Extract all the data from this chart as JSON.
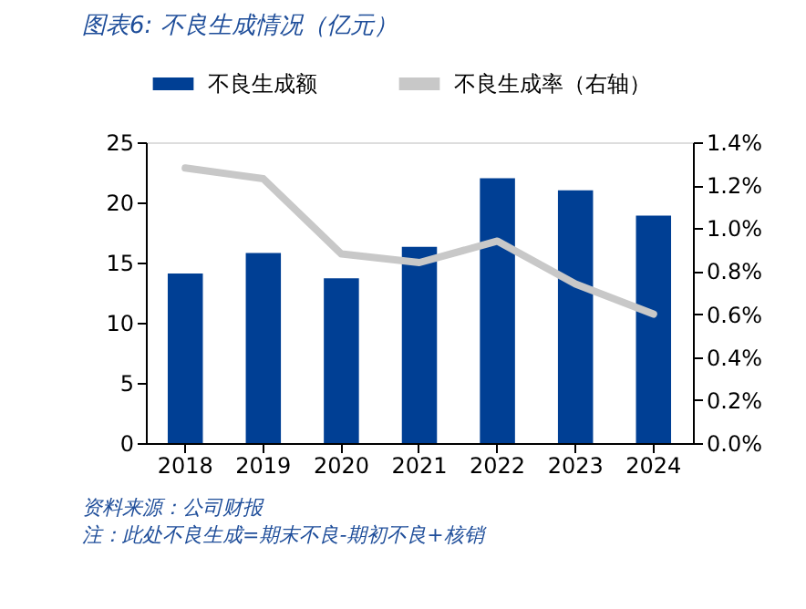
{
  "chart_data": {
    "type": "bar",
    "title": "图表6:  不良生成情况（亿元）",
    "categories": [
      "2018",
      "2019",
      "2020",
      "2021",
      "2022",
      "2023",
      "2024"
    ],
    "series": [
      {
        "name": "不良生成额",
        "color": "#003f94",
        "values": [
          14.1,
          15.8,
          13.7,
          16.3,
          22.0,
          21.0,
          18.9
        ]
      },
      {
        "name": "不良生成率（右轴）",
        "type": "line",
        "axis": "y2",
        "color": "#c8c8c8",
        "values": [
          1.28,
          1.23,
          0.88,
          0.84,
          0.94,
          0.74,
          0.6
        ]
      }
    ],
    "ylim": [
      0,
      25
    ],
    "yticks": [
      0,
      5,
      10,
      15,
      20,
      25
    ],
    "y2lim": [
      0,
      1.4
    ],
    "y2ticks": [
      {
        "value": 0,
        "label": "0.0%"
      },
      {
        "value": 0.2,
        "label": "0.2%"
      },
      {
        "value": 0.4,
        "label": "0.4%"
      },
      {
        "value": 0.6,
        "label": "0.6%"
      },
      {
        "value": 0.8,
        "label": "0.8%"
      },
      {
        "value": 1.0,
        "label": "1.0%"
      },
      {
        "value": 1.2,
        "label": "1.2%"
      },
      {
        "value": 1.4,
        "label": "1.4%"
      }
    ],
    "grid": false,
    "legend": "top",
    "marker": "none",
    "line_style": "solid",
    "annotations": [
      "资料来源：公司财报",
      "注：此处不良生成=期末不良-期初不良+核销"
    ]
  }
}
